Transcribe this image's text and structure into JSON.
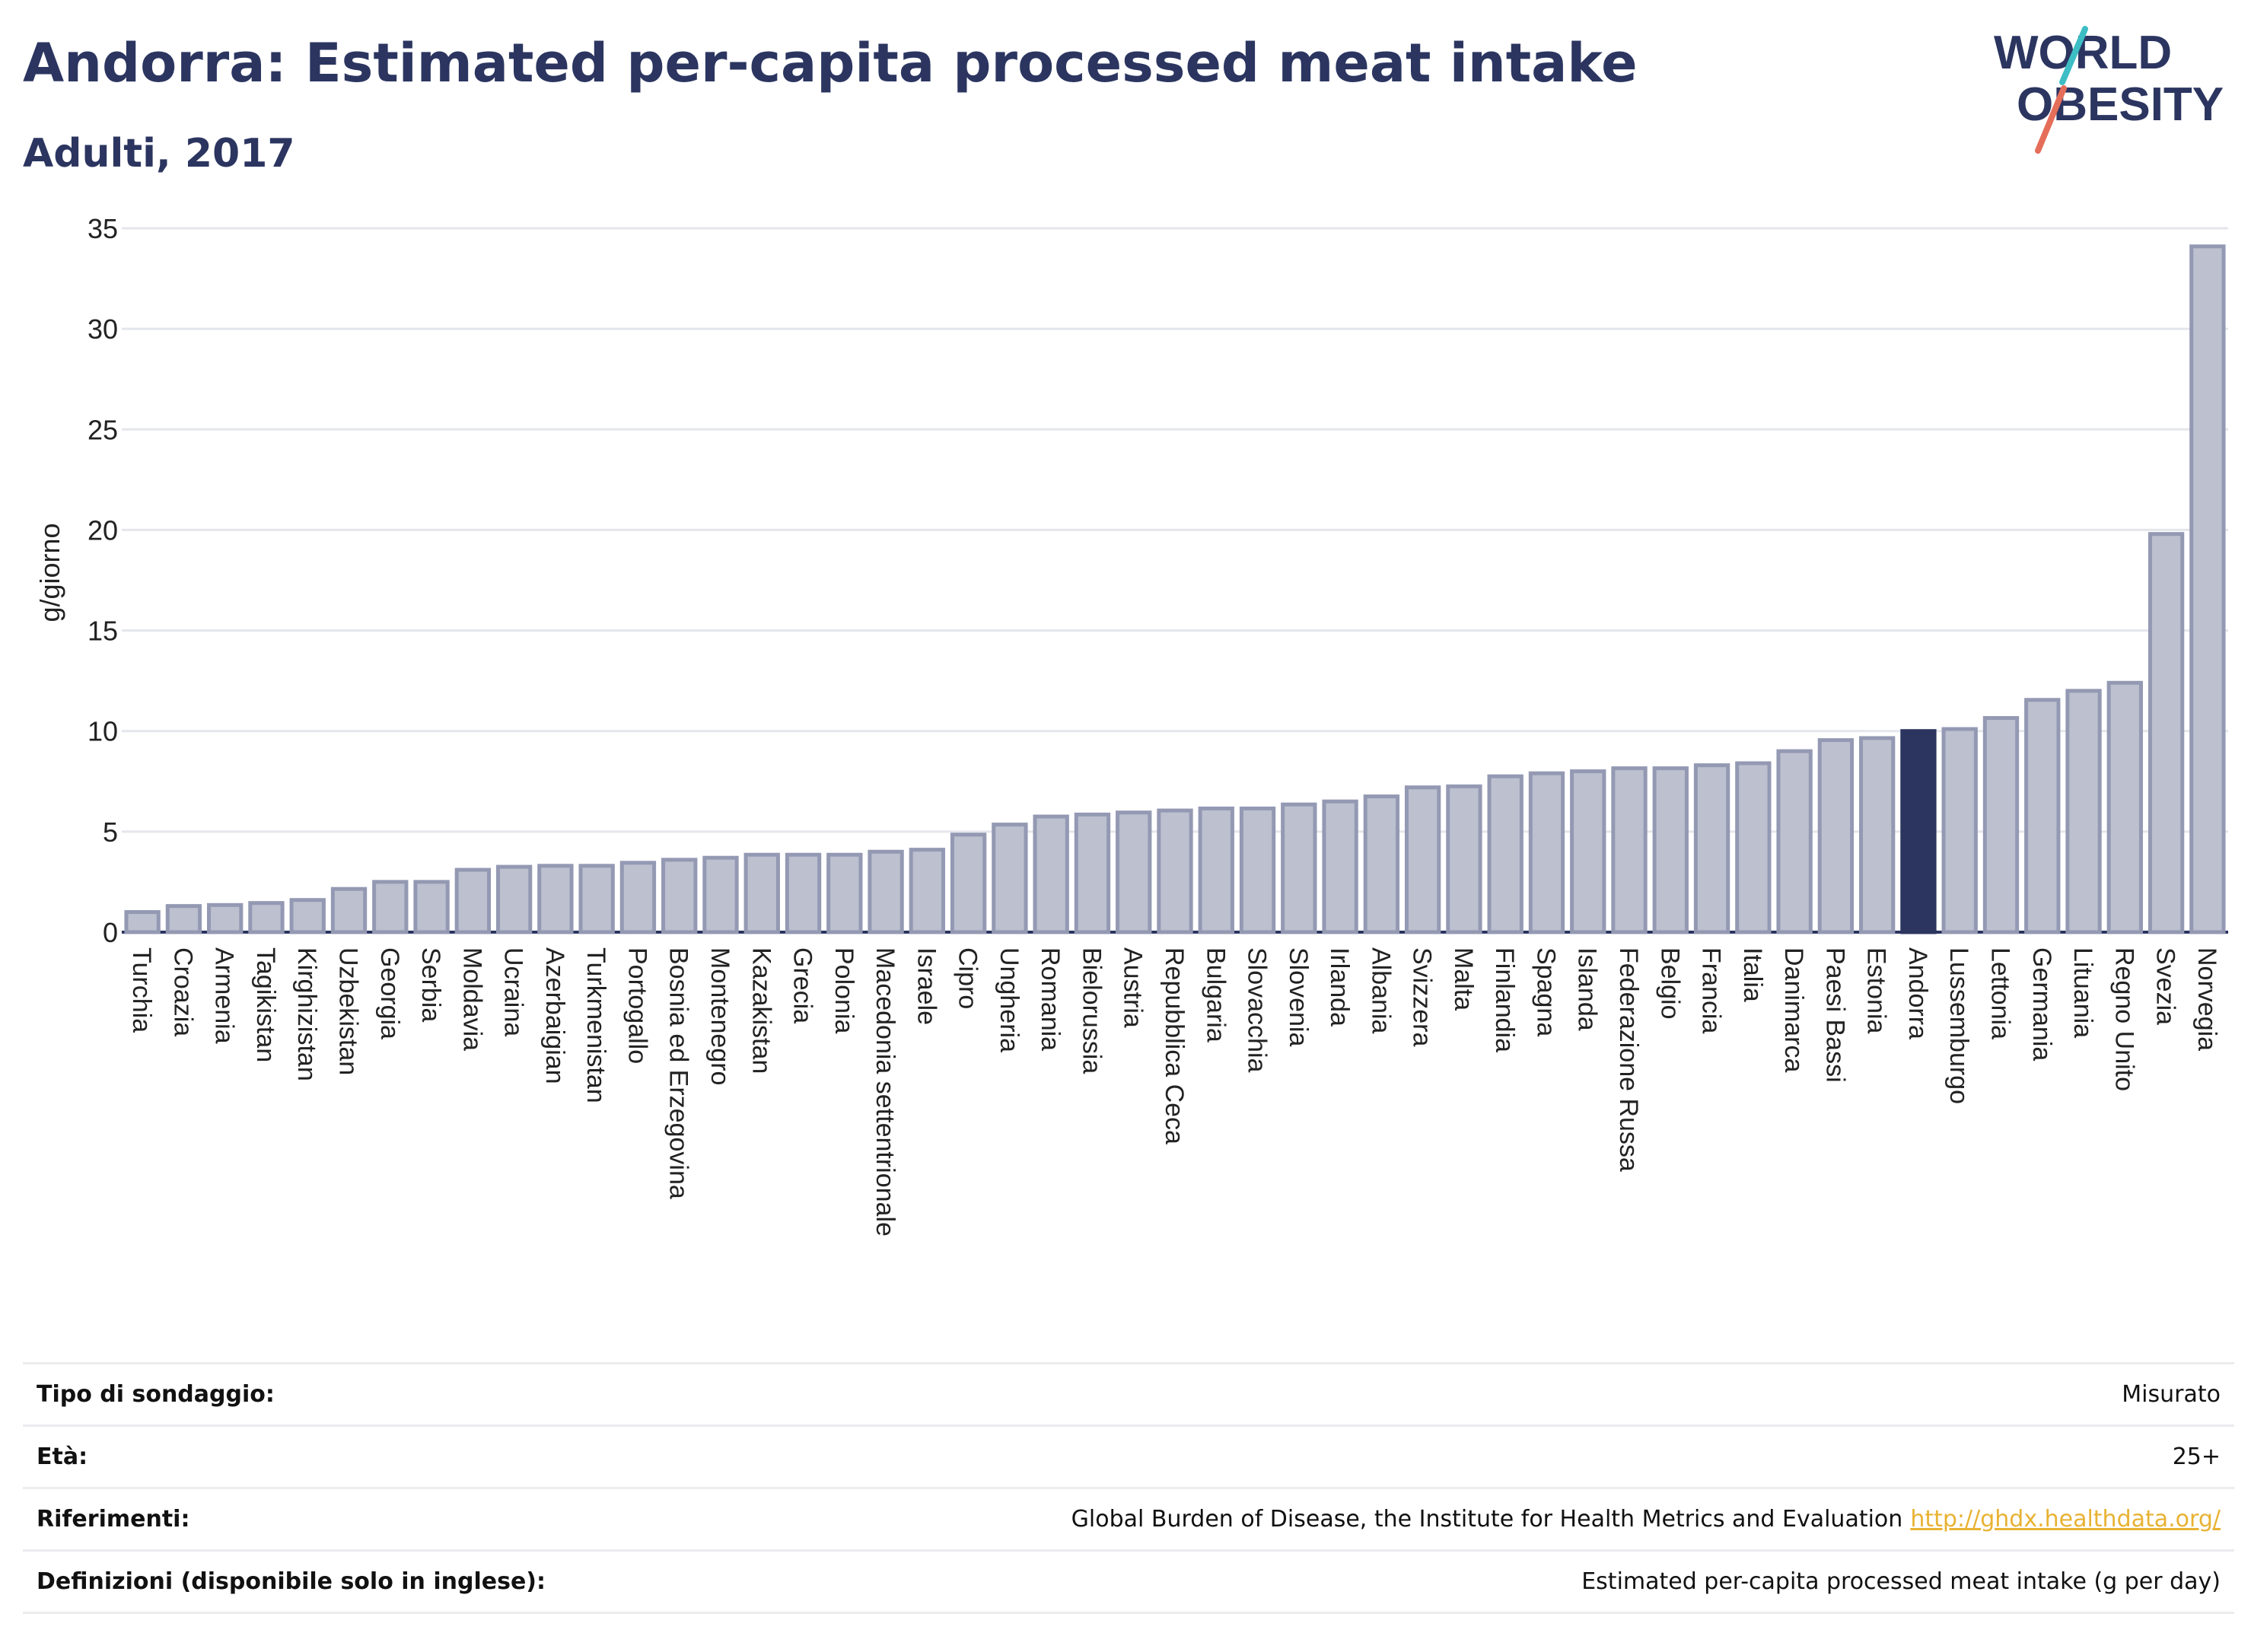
{
  "header": {
    "title": "Andorra: Estimated per-capita processed meat intake",
    "subtitle": "Adulti, 2017"
  },
  "logo": {
    "text_line1": "WORLD",
    "text_line2": "OBESITY",
    "colors": {
      "text": "#2b3560",
      "slash_top": "#3dbdc4",
      "slash_bottom": "#e56e5a"
    }
  },
  "colors": {
    "bar_fill": "#bcc0cf",
    "bar_stroke": "#9499b3",
    "highlight_fill": "#2b3560",
    "axis_text": "#222222",
    "grid": "#e4e6ec"
  },
  "chart_data": {
    "type": "bar",
    "ylabel": "g/giorno",
    "ylim": [
      0,
      35
    ],
    "yticks": [
      0,
      5,
      10,
      15,
      20,
      25,
      30,
      35
    ],
    "grid": true,
    "highlight": "Andorra",
    "categories": [
      "Turchia",
      "Croazia",
      "Armenia",
      "Tagikistan",
      "Kirghizistan",
      "Uzbekistan",
      "Georgia",
      "Serbia",
      "Moldavia",
      "Ucraina",
      "Azerbaigian",
      "Turkmenistan",
      "Portogallo",
      "Bosnia ed Erzegovina",
      "Montenegro",
      "Kazakistan",
      "Grecia",
      "Polonia",
      "Macedonia settentrionale",
      "Israele",
      "Cipro",
      "Ungheria",
      "Romania",
      "Bielorussia",
      "Austria",
      "Repubblica Ceca",
      "Bulgaria",
      "Slovacchia",
      "Slovenia",
      "Irlanda",
      "Albania",
      "Svizzera",
      "Malta",
      "Finlandia",
      "Spagna",
      "Islanda",
      "Federazione Russa",
      "Belgio",
      "Francia",
      "Italia",
      "Danimarca",
      "Paesi Bassi",
      "Estonia",
      "Andorra",
      "Lussemburgo",
      "Lettonia",
      "Germania",
      "Lituania",
      "Regno Unito",
      "Svezia",
      "Norvegia"
    ],
    "values": [
      1.0,
      1.3,
      1.35,
      1.45,
      1.6,
      2.15,
      2.5,
      2.5,
      3.1,
      3.25,
      3.3,
      3.3,
      3.45,
      3.6,
      3.7,
      3.85,
      3.85,
      3.85,
      4.0,
      4.1,
      4.85,
      5.35,
      5.75,
      5.85,
      5.95,
      6.05,
      6.15,
      6.15,
      6.35,
      6.5,
      6.75,
      7.2,
      7.25,
      7.75,
      7.9,
      8.0,
      8.15,
      8.15,
      8.3,
      8.4,
      9.0,
      9.55,
      9.65,
      10.0,
      10.1,
      10.65,
      11.55,
      12.0,
      12.4,
      19.8,
      34.1
    ]
  },
  "info": [
    {
      "label": "Tipo di sondaggio:",
      "value": "Misurato"
    },
    {
      "label": "Età:",
      "value": "25+"
    },
    {
      "label": "Riferimenti:",
      "value": "Global Burden of Disease, the Institute for Health Metrics and Evaluation",
      "link": "http://ghdx.healthdata.org/"
    },
    {
      "label": "Definizioni (disponibile solo in inglese):",
      "value": "Estimated per-capita processed meat intake (g per day)"
    }
  ]
}
